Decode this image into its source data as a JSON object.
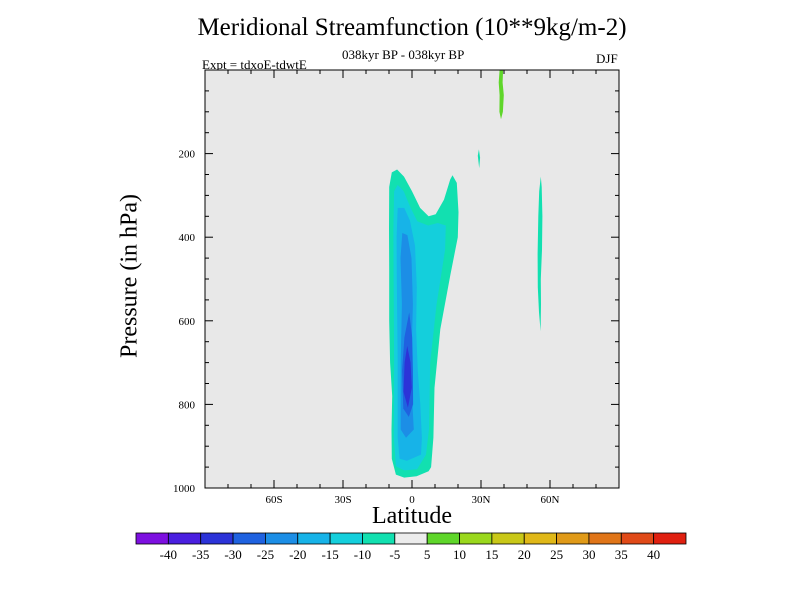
{
  "chart_data": {
    "type": "contour",
    "title": "Meridional Streamfunction (10**9kg/m-2)",
    "subtitle": "038kyr BP - 038kyr BP",
    "experiment": "Expt = tdxoE-tdwtE",
    "season": "DJF",
    "xlabel": "Latitude",
    "ylabel": "Pressure (in hPa)",
    "xlim": [
      -90,
      90
    ],
    "ylim": [
      1000,
      0
    ],
    "x_ticks": [
      {
        "value": -60,
        "label": "60S"
      },
      {
        "value": -30,
        "label": "30S"
      },
      {
        "value": 0,
        "label": "0"
      },
      {
        "value": 30,
        "label": "30N"
      },
      {
        "value": 60,
        "label": "60N"
      }
    ],
    "y_ticks": [
      {
        "value": 200,
        "label": "200"
      },
      {
        "value": 400,
        "label": "400"
      },
      {
        "value": 600,
        "label": "600"
      },
      {
        "value": 800,
        "label": "800"
      },
      {
        "value": 1000,
        "label": "1000"
      }
    ],
    "contour_levels": [
      -40,
      -35,
      -30,
      -25,
      -20,
      -15,
      -10,
      -5,
      5,
      10,
      15,
      20,
      25,
      30,
      35,
      40
    ],
    "colorbar_labels": [
      "-40",
      "-35",
      "-30",
      "-25",
      "-20",
      "-15",
      "-10",
      "-5",
      "5",
      "10",
      "15",
      "20",
      "25",
      "30",
      "35",
      "40"
    ],
    "colorbar_colors": [
      "#7d10e0",
      "#4a1fe0",
      "#2c33d8",
      "#1f62e0",
      "#1c8ee6",
      "#17b3e8",
      "#14cfdc",
      "#12e0b0",
      "#ececec",
      "#5fd62a",
      "#9ad81d",
      "#c9c818",
      "#e0b818",
      "#e09a18",
      "#e07518",
      "#e04a18",
      "#e02010"
    ],
    "regions": [
      {
        "name": "tropical-cell-outer",
        "level": -10,
        "color": "#12e0b0",
        "polygon": [
          [
            -8.6,
            780
          ],
          [
            -9.5,
            700
          ],
          [
            -9.9,
            600
          ],
          [
            -9.9,
            480
          ],
          [
            -10,
            380
          ],
          [
            -9.9,
            280
          ],
          [
            -8.8,
            245
          ],
          [
            -6.5,
            238
          ],
          [
            -3.5,
            255
          ],
          [
            0,
            290
          ],
          [
            3.5,
            330
          ],
          [
            7.2,
            350
          ],
          [
            10.3,
            345
          ],
          [
            13.9,
            310
          ],
          [
            16.6,
            262
          ],
          [
            17.6,
            252
          ],
          [
            19.5,
            270
          ],
          [
            20.2,
            340
          ],
          [
            19.9,
            400
          ],
          [
            16.7,
            490
          ],
          [
            12.3,
            620
          ],
          [
            9.8,
            760
          ],
          [
            9.3,
            880
          ],
          [
            8.3,
            950
          ],
          [
            7.2,
            960
          ],
          [
            2,
            972
          ],
          [
            -3.4,
            975
          ],
          [
            -7,
            968
          ],
          [
            -8.8,
            930
          ],
          [
            -8.9,
            860
          ]
        ]
      },
      {
        "name": "tropical-cell-15",
        "level": -15,
        "color": "#14cfdc",
        "polygon": [
          [
            -7.8,
            290
          ],
          [
            -6.2,
            275
          ],
          [
            -3.6,
            290
          ],
          [
            -0.6,
            330
          ],
          [
            2.3,
            362
          ],
          [
            7,
            372
          ],
          [
            11.2,
            366
          ],
          [
            14.7,
            372
          ],
          [
            14.4,
            430
          ],
          [
            10.7,
            560
          ],
          [
            7.9,
            700
          ],
          [
            7.4,
            860
          ],
          [
            6.1,
            920
          ],
          [
            2.2,
            955
          ],
          [
            -3.4,
            958
          ],
          [
            -7,
            948
          ],
          [
            -7.9,
            880
          ],
          [
            -7.8,
            700
          ],
          [
            -8,
            500
          ],
          [
            -8.1,
            380
          ]
        ]
      },
      {
        "name": "tropical-cell-20",
        "level": -20,
        "color": "#17b3e8",
        "polygon": [
          [
            -6.2,
            330
          ],
          [
            -3.4,
            330
          ],
          [
            -0.9,
            360
          ],
          [
            1.3,
            420
          ],
          [
            2.1,
            520
          ],
          [
            1.8,
            620
          ],
          [
            2.5,
            720
          ],
          [
            3.6,
            800
          ],
          [
            4.3,
            880
          ],
          [
            3.9,
            920
          ],
          [
            -2.2,
            935
          ],
          [
            -5.4,
            930
          ],
          [
            -6.2,
            880
          ],
          [
            -6.2,
            700
          ],
          [
            -6.6,
            500
          ],
          [
            -6.7,
            400
          ]
        ]
      },
      {
        "name": "tropical-cell-25",
        "level": -25,
        "color": "#1c8ee6",
        "polygon": [
          [
            -4.2,
            390
          ],
          [
            -2,
            395
          ],
          [
            -0.2,
            450
          ],
          [
            0.4,
            560
          ],
          [
            0,
            640
          ],
          [
            -0.2,
            760
          ],
          [
            0.8,
            860
          ],
          [
            -2.6,
            880
          ],
          [
            -4.9,
            860
          ],
          [
            -4.9,
            700
          ],
          [
            -4.4,
            560
          ],
          [
            -5,
            450
          ]
        ]
      },
      {
        "name": "tropical-cell-30",
        "level": -30,
        "color": "#1f62e0",
        "polygon": [
          [
            -1.2,
            580
          ],
          [
            0.1,
            640
          ],
          [
            0.4,
            720
          ],
          [
            0.5,
            800
          ],
          [
            -1.4,
            830
          ],
          [
            -3.8,
            810
          ],
          [
            -4.3,
            720
          ],
          [
            -3.3,
            640
          ]
        ]
      },
      {
        "name": "tropical-cell-35",
        "level": -35,
        "color": "#2c33d8",
        "polygon": [
          [
            -2.1,
            660
          ],
          [
            -0.6,
            700
          ],
          [
            -0.1,
            760
          ],
          [
            -1.8,
            808
          ],
          [
            -3.7,
            770
          ],
          [
            -3.2,
            700
          ]
        ]
      },
      {
        "name": "upper-positive-streak",
        "level": 5,
        "color": "#5fd62a",
        "polygon": [
          [
            38.1,
            0
          ],
          [
            39.6,
            0
          ],
          [
            39.4,
            30
          ],
          [
            39.9,
            60
          ],
          [
            39.5,
            100
          ],
          [
            38.7,
            118
          ],
          [
            38,
            100
          ],
          [
            38.1,
            60
          ],
          [
            37.7,
            30
          ]
        ]
      },
      {
        "name": "upper-negative-blip",
        "level": -5,
        "color": "#12e0b0",
        "polygon": [
          [
            29.1,
            190
          ],
          [
            29.6,
            210
          ],
          [
            29.2,
            235
          ],
          [
            28.6,
            205
          ]
        ]
      },
      {
        "name": "midlat-negative-streak",
        "level": -5,
        "color": "#12e0b0",
        "polygon": [
          [
            56,
            255
          ],
          [
            56.4,
            280
          ],
          [
            56.7,
            350
          ],
          [
            56.5,
            430
          ],
          [
            56,
            500
          ],
          [
            56.1,
            560
          ],
          [
            55.9,
            625
          ],
          [
            55.2,
            580
          ],
          [
            54.7,
            520
          ],
          [
            54.6,
            440
          ],
          [
            54.9,
            350
          ],
          [
            55.3,
            290
          ]
        ]
      }
    ]
  }
}
